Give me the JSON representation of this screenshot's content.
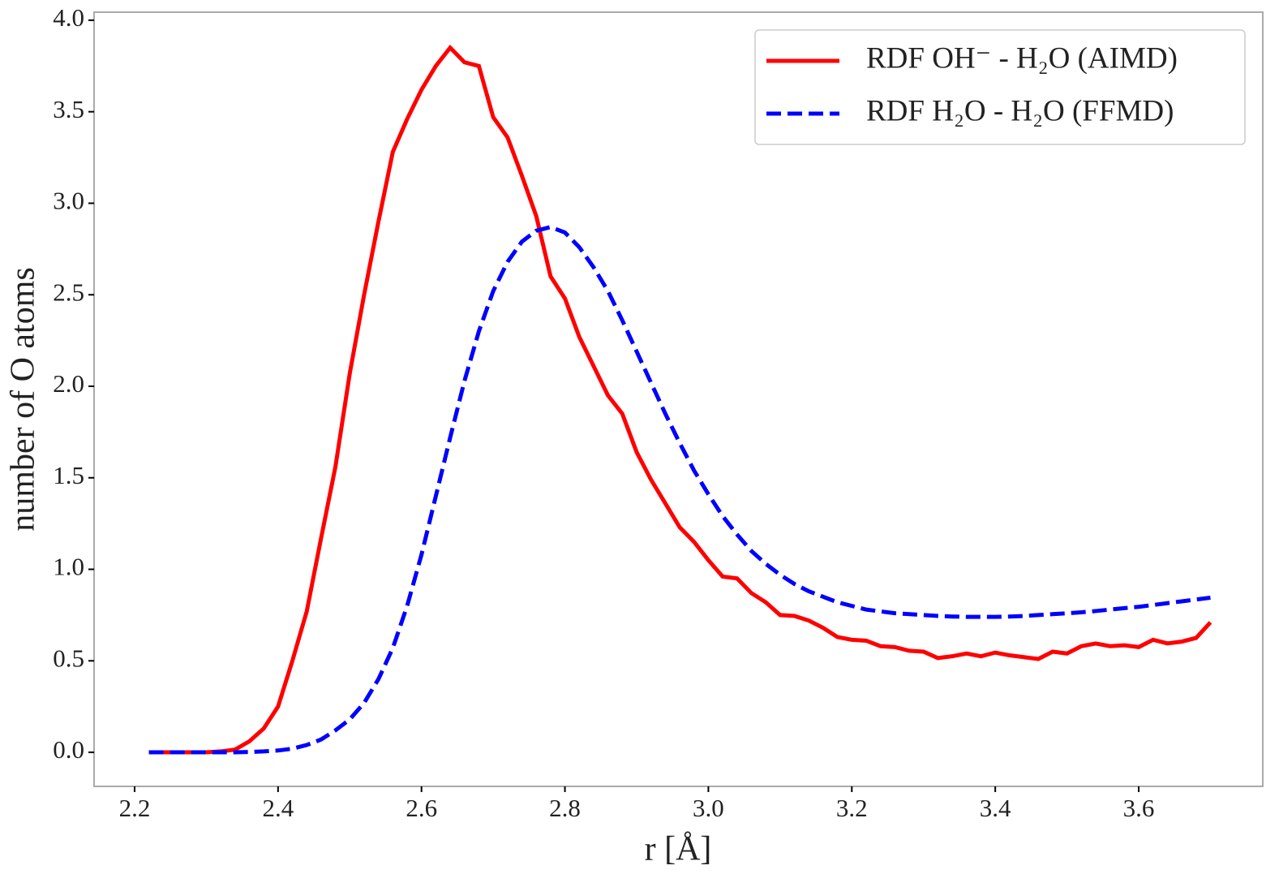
{
  "chart_data": {
    "type": "line",
    "xlabel": "r [Å]",
    "ylabel": "number of O atoms",
    "x": [
      2.22,
      2.24,
      2.26,
      2.28,
      2.3,
      2.32,
      2.34,
      2.36,
      2.38,
      2.4,
      2.42,
      2.44,
      2.46,
      2.48,
      2.5,
      2.52,
      2.54,
      2.56,
      2.58,
      2.6,
      2.62,
      2.64,
      2.66,
      2.68,
      2.7,
      2.72,
      2.74,
      2.76,
      2.78,
      2.8,
      2.82,
      2.84,
      2.86,
      2.88,
      2.9,
      2.92,
      2.94,
      2.96,
      2.98,
      3.0,
      3.02,
      3.04,
      3.06,
      3.08,
      3.1,
      3.12,
      3.14,
      3.16,
      3.18,
      3.2,
      3.22,
      3.24,
      3.26,
      3.28,
      3.3,
      3.32,
      3.34,
      3.36,
      3.38,
      3.4,
      3.42,
      3.44,
      3.46,
      3.48,
      3.5,
      3.52,
      3.54,
      3.56,
      3.58,
      3.6,
      3.62,
      3.64,
      3.66,
      3.68,
      3.7
    ],
    "series": [
      {
        "name": "RDF OH⁻ - H₂O (AIMD)",
        "color": "#ff0000",
        "dashed": false,
        "values": [
          0,
          0,
          0,
          0,
          0,
          0.005,
          0.015,
          0.06,
          0.13,
          0.25,
          0.5,
          0.77,
          1.17,
          1.56,
          2.07,
          2.5,
          2.9,
          3.28,
          3.46,
          3.62,
          3.75,
          3.85,
          3.77,
          3.75,
          3.47,
          3.36,
          3.15,
          2.93,
          2.6,
          2.48,
          2.27,
          2.11,
          1.95,
          1.85,
          1.64,
          1.49,
          1.36,
          1.23,
          1.15,
          1.05,
          0.96,
          0.95,
          0.87,
          0.82,
          0.75,
          0.745,
          0.72,
          0.68,
          0.63,
          0.615,
          0.61,
          0.58,
          0.575,
          0.555,
          0.55,
          0.515,
          0.525,
          0.54,
          0.525,
          0.545,
          0.53,
          0.52,
          0.51,
          0.55,
          0.54,
          0.58,
          0.595,
          0.58,
          0.585,
          0.575,
          0.615,
          0.595,
          0.605,
          0.625,
          0.71
        ]
      },
      {
        "name": "RDF H₂O - H₂O (FFMD)",
        "color": "#0000ff",
        "dashed": true,
        "values": [
          0,
          0,
          0,
          0,
          0,
          0,
          0,
          0.002,
          0.005,
          0.01,
          0.02,
          0.04,
          0.07,
          0.12,
          0.18,
          0.27,
          0.4,
          0.57,
          0.8,
          1.08,
          1.4,
          1.72,
          2.03,
          2.3,
          2.52,
          2.68,
          2.79,
          2.85,
          2.87,
          2.84,
          2.76,
          2.65,
          2.52,
          2.36,
          2.19,
          2.02,
          1.85,
          1.69,
          1.54,
          1.41,
          1.29,
          1.19,
          1.1,
          1.03,
          0.97,
          0.92,
          0.88,
          0.85,
          0.82,
          0.8,
          0.78,
          0.77,
          0.76,
          0.755,
          0.75,
          0.745,
          0.742,
          0.74,
          0.74,
          0.74,
          0.742,
          0.745,
          0.75,
          0.755,
          0.76,
          0.765,
          0.772,
          0.78,
          0.788,
          0.795,
          0.805,
          0.815,
          0.825,
          0.835,
          0.845
        ]
      }
    ],
    "xlim": [
      2.1435,
      3.773
    ],
    "ylim": [
      -0.186,
      4.044
    ],
    "xticks": [
      2.2,
      2.4,
      2.6,
      2.8,
      {
        "value": 3.0,
        "label": "3.0"
      },
      3.2,
      3.4,
      3.6
    ],
    "yticks": [
      {
        "value": 0,
        "label": "0.0"
      },
      {
        "value": 0.5,
        "label": "0.5"
      },
      {
        "value": 1,
        "label": "1.0"
      },
      {
        "value": 1.5,
        "label": "1.5"
      },
      {
        "value": 2,
        "label": "2.0"
      },
      {
        "value": 2.5,
        "label": "2.5"
      },
      {
        "value": 3,
        "label": "3.0"
      },
      {
        "value": 3.5,
        "label": "3.5"
      },
      {
        "value": 4,
        "label": "4.0"
      }
    ],
    "legend": "upper right"
  }
}
